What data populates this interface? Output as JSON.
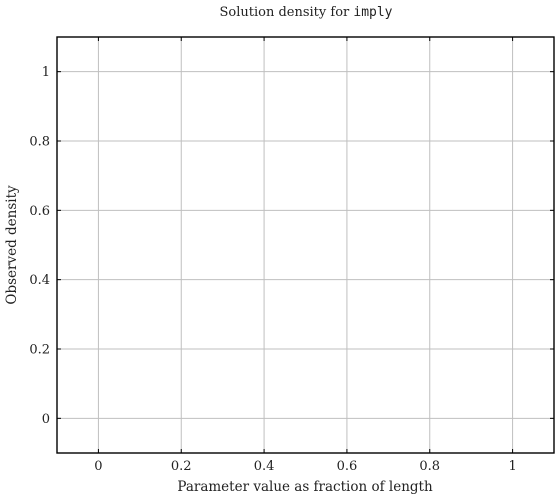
{
  "chart_data": {
    "type": "line",
    "title_prefix": "Solution density for ",
    "title_code": "imply",
    "xlabel": "Parameter value as fraction of length",
    "ylabel": "Observed density",
    "xlim": [
      -0.1,
      1.1
    ],
    "ylim": [
      -0.1,
      1.1
    ],
    "x_ticks": [
      0,
      0.2,
      0.4,
      0.6,
      0.8,
      1
    ],
    "x_tick_labels": [
      "0",
      "0.2",
      "0.4",
      "0.6",
      "0.8",
      "1"
    ],
    "y_ticks": [
      0,
      0.2,
      0.4,
      0.6,
      0.8,
      1
    ],
    "y_tick_labels": [
      "0",
      "0.2",
      "0.4",
      "0.6",
      "0.8",
      "1"
    ],
    "grid": true,
    "series": []
  },
  "colors": {
    "grid": "#bfbfbf",
    "frame": "#000000",
    "text": "#222222"
  }
}
